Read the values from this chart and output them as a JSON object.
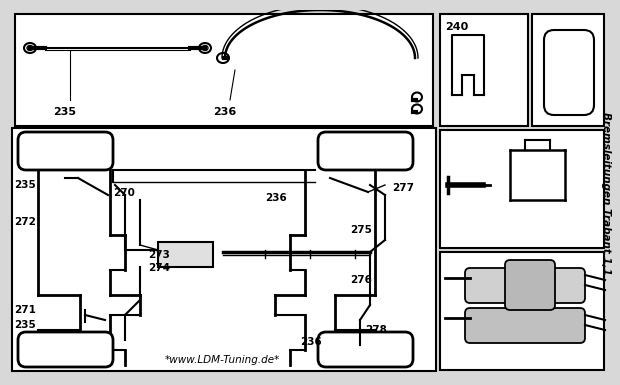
{
  "title": "Bremsleitungen Trabant 1,1",
  "bg_color": "#d8d8d8",
  "white": "#ffffff",
  "black": "#000000",
  "website": "*www.LDM-Tuning.de*"
}
